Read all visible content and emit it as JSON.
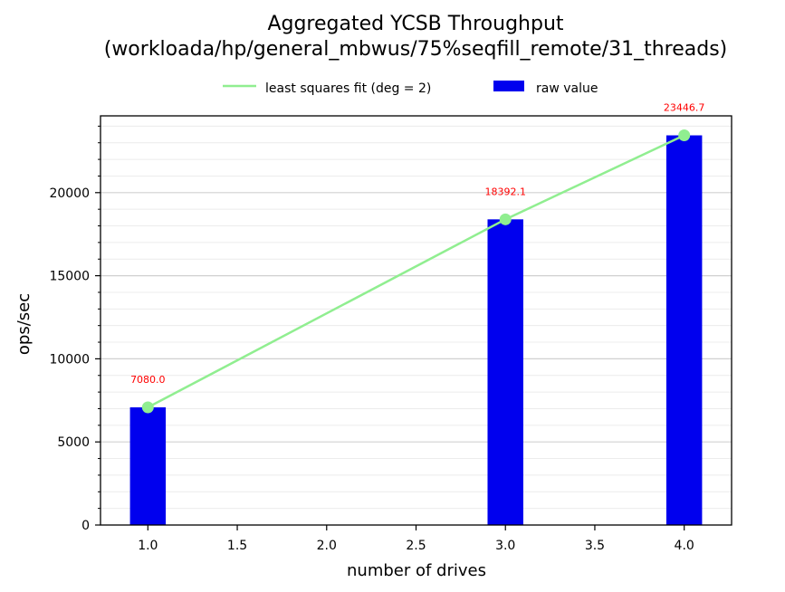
{
  "chart_data": {
    "type": "bar",
    "title": "Aggregated YCSB Throughput",
    "subtitle": "(workloada/hp/general_mbwus/75%seqfill_remote/31_threads)",
    "xlabel": "number of drives",
    "ylabel": "ops/sec",
    "xlim": [
      0.735,
      4.265
    ],
    "ylim": [
      0,
      24619
    ],
    "xticks": [
      "1.0",
      "1.5",
      "2.0",
      "2.5",
      "3.0",
      "3.5",
      "4.0"
    ],
    "xtick_values": [
      1.0,
      1.5,
      2.0,
      2.5,
      3.0,
      3.5,
      4.0
    ],
    "yticks": [
      "0",
      "5000",
      "10000",
      "15000",
      "20000"
    ],
    "ytick_values": [
      0,
      5000,
      10000,
      15000,
      20000
    ],
    "grid": true,
    "legend_position": "top-center",
    "bar_width": 0.2,
    "series": [
      {
        "name": "raw value",
        "kind": "bar",
        "color": "#0000ee",
        "x": [
          1.0,
          3.0,
          4.0
        ],
        "values": [
          7080.0,
          18392.1,
          23446.7
        ],
        "labels": [
          "7080.0",
          "18392.1",
          "23446.7"
        ],
        "label_color": "#ff0000"
      },
      {
        "name": "least squares fit (deg = 2)",
        "kind": "line",
        "color": "#90ee90",
        "x": [
          1.0,
          3.0,
          4.0
        ],
        "values": [
          7080.0,
          18392.1,
          23446.7
        ]
      }
    ]
  }
}
